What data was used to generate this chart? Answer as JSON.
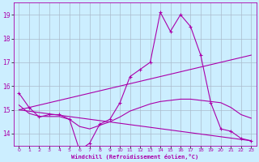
{
  "xlabel": "Windchill (Refroidissement éolien,°C)",
  "bg_color": "#cceeff",
  "grid_color": "#aabbcc",
  "line_color": "#aa00aa",
  "main_line": {
    "x": [
      0,
      1,
      2,
      3,
      4,
      5,
      6,
      7,
      8,
      9,
      10,
      11,
      12,
      13,
      14,
      15,
      16,
      17,
      18,
      19,
      20,
      21,
      22,
      23
    ],
    "y": [
      15.7,
      15.1,
      14.7,
      14.8,
      14.8,
      14.6,
      13.3,
      13.6,
      14.4,
      14.6,
      15.3,
      16.4,
      16.7,
      17.0,
      19.1,
      18.3,
      19.0,
      18.5,
      17.3,
      15.3,
      14.2,
      14.1,
      13.8,
      13.7
    ]
  },
  "trend_upper": {
    "x": [
      0,
      23
    ],
    "y": [
      15.0,
      17.3
    ]
  },
  "trend_lower": {
    "x": [
      0,
      23
    ],
    "y": [
      15.0,
      13.7
    ]
  },
  "smooth_line": {
    "x": [
      0,
      1,
      2,
      3,
      4,
      5,
      6,
      7,
      8,
      9,
      10,
      11,
      12,
      13,
      14,
      15,
      16,
      17,
      18,
      19,
      20,
      21,
      22,
      23
    ],
    "y": [
      15.2,
      14.85,
      14.73,
      14.72,
      14.72,
      14.6,
      14.3,
      14.2,
      14.35,
      14.5,
      14.7,
      14.95,
      15.1,
      15.25,
      15.35,
      15.4,
      15.45,
      15.45,
      15.4,
      15.35,
      15.3,
      15.1,
      14.8,
      14.65
    ]
  },
  "xlim": [
    -0.5,
    23.5
  ],
  "ylim": [
    13.5,
    19.5
  ],
  "yticks": [
    14,
    15,
    16,
    17,
    18,
    19
  ],
  "xticks": [
    0,
    1,
    2,
    3,
    4,
    5,
    6,
    7,
    8,
    9,
    10,
    11,
    12,
    13,
    14,
    15,
    16,
    17,
    18,
    19,
    20,
    21,
    22,
    23
  ]
}
